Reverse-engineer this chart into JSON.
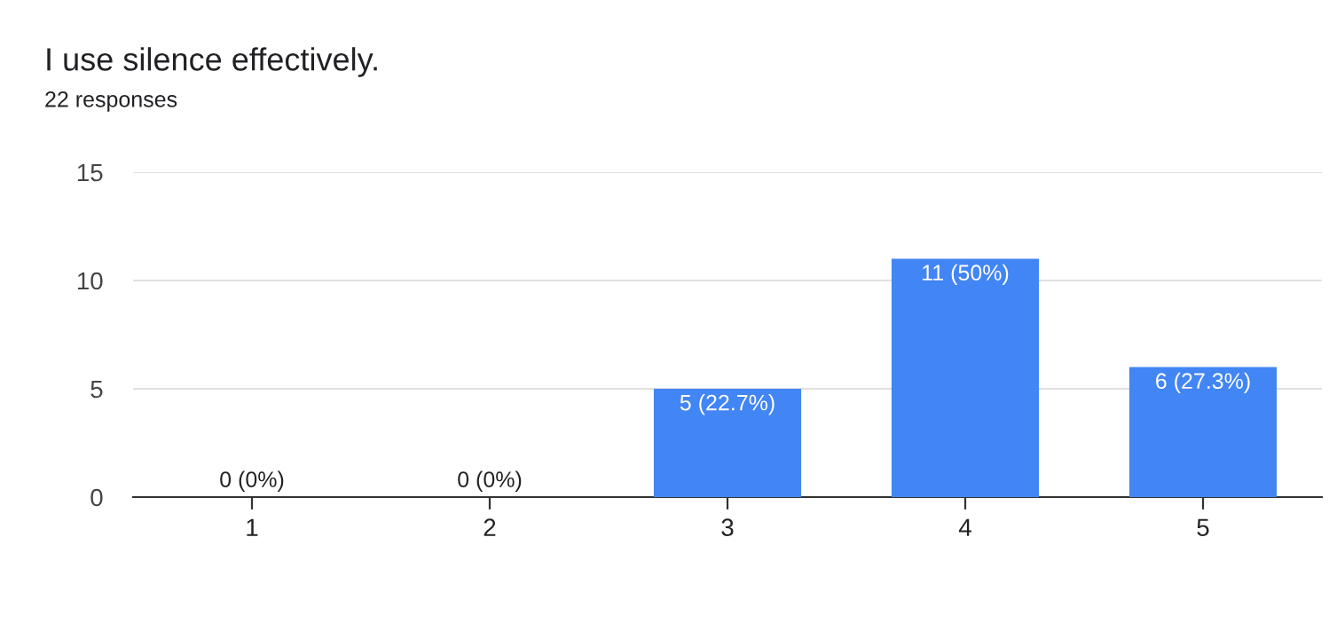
{
  "chart_data": {
    "type": "bar",
    "title": "I use silence effectively.",
    "subtitle": "22 responses",
    "categories": [
      "1",
      "2",
      "3",
      "4",
      "5"
    ],
    "values": [
      0,
      0,
      5,
      11,
      6
    ],
    "value_labels": [
      "0 (0%)",
      "0 (0%)",
      "5 (22.7%)",
      "11 (50%)",
      "6 (27.3%)"
    ],
    "color": "#4285f4",
    "ylim": [
      0,
      15
    ],
    "yticks": [
      0,
      5,
      10,
      15
    ],
    "grid": "y",
    "legend": false
  }
}
